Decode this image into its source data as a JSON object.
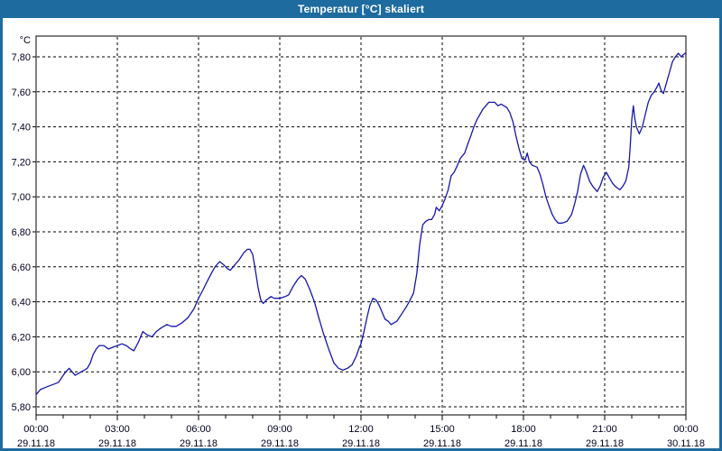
{
  "window": {
    "title": "Temperatur [°C] skaliert",
    "titlebar_color": "#1E6B9F",
    "border_color": "#1E6B9F",
    "background": "#FFFFFF"
  },
  "chart_data": {
    "type": "line",
    "title": "Temperatur [°C] skaliert",
    "ylabel": "°C",
    "xlabel": "",
    "legend": [],
    "grid": "dashed-black",
    "plot_background": "#FFFFFF",
    "line_color": "#1616AC",
    "text_color": "#00001E",
    "ylim": [
      5.75,
      7.92
    ],
    "xlim_hours": [
      0,
      24
    ],
    "y_tick_values": [
      5.8,
      6.0,
      6.2,
      6.4,
      6.6,
      6.8,
      7.0,
      7.2,
      7.4,
      7.6,
      7.8
    ],
    "y_tick_labels": [
      "5,80",
      "6,00",
      "6,20",
      "6,40",
      "6,60",
      "6,80",
      "7,00",
      "7,20",
      "7,40",
      "7,60",
      "7,80"
    ],
    "x_ticks": [
      {
        "hour": 0,
        "time": "00:00",
        "date": "29.11.18"
      },
      {
        "hour": 3,
        "time": "03:00",
        "date": "29.11.18"
      },
      {
        "hour": 6,
        "time": "06:00",
        "date": "29.11.18"
      },
      {
        "hour": 9,
        "time": "09:00",
        "date": "29.11.18"
      },
      {
        "hour": 12,
        "time": "12:00",
        "date": "29.11.18"
      },
      {
        "hour": 15,
        "time": "15:00",
        "date": "29.11.18"
      },
      {
        "hour": 18,
        "time": "18:00",
        "date": "29.11.18"
      },
      {
        "hour": 21,
        "time": "21:00",
        "date": "29.11.18"
      },
      {
        "hour": 24,
        "time": "00:00",
        "date": "30.11.18"
      }
    ],
    "minor_tick_every_hours": 1,
    "series_name": "Temperatur",
    "points": [
      [
        0.0,
        5.87
      ],
      [
        0.17,
        5.9
      ],
      [
        0.33,
        5.91
      ],
      [
        0.5,
        5.92
      ],
      [
        0.67,
        5.93
      ],
      [
        0.83,
        5.94
      ],
      [
        1.0,
        5.98
      ],
      [
        1.1,
        6.0
      ],
      [
        1.22,
        6.02
      ],
      [
        1.33,
        6.0
      ],
      [
        1.44,
        5.98
      ],
      [
        1.56,
        5.99
      ],
      [
        1.67,
        6.0
      ],
      [
        1.78,
        6.01
      ],
      [
        1.89,
        6.02
      ],
      [
        2.0,
        6.05
      ],
      [
        2.11,
        6.1
      ],
      [
        2.22,
        6.13
      ],
      [
        2.33,
        6.15
      ],
      [
        2.5,
        6.15
      ],
      [
        2.67,
        6.13
      ],
      [
        2.83,
        6.14
      ],
      [
        3.0,
        6.15
      ],
      [
        3.17,
        6.16
      ],
      [
        3.33,
        6.15
      ],
      [
        3.5,
        6.13
      ],
      [
        3.61,
        6.12
      ],
      [
        3.78,
        6.17
      ],
      [
        3.94,
        6.23
      ],
      [
        4.11,
        6.21
      ],
      [
        4.28,
        6.2
      ],
      [
        4.44,
        6.23
      ],
      [
        4.61,
        6.25
      ],
      [
        4.83,
        6.27
      ],
      [
        5.0,
        6.26
      ],
      [
        5.17,
        6.26
      ],
      [
        5.39,
        6.28
      ],
      [
        5.61,
        6.31
      ],
      [
        5.83,
        6.36
      ],
      [
        6.0,
        6.42
      ],
      [
        6.17,
        6.47
      ],
      [
        6.33,
        6.52
      ],
      [
        6.5,
        6.57
      ],
      [
        6.61,
        6.6
      ],
      [
        6.78,
        6.63
      ],
      [
        6.94,
        6.61
      ],
      [
        7.06,
        6.59
      ],
      [
        7.17,
        6.58
      ],
      [
        7.33,
        6.61
      ],
      [
        7.5,
        6.64
      ],
      [
        7.67,
        6.68
      ],
      [
        7.8,
        6.7
      ],
      [
        7.9,
        6.7
      ],
      [
        8.0,
        6.67
      ],
      [
        8.1,
        6.58
      ],
      [
        8.2,
        6.48
      ],
      [
        8.3,
        6.41
      ],
      [
        8.39,
        6.39
      ],
      [
        8.5,
        6.41
      ],
      [
        8.67,
        6.43
      ],
      [
        8.8,
        6.42
      ],
      [
        9.0,
        6.42
      ],
      [
        9.2,
        6.43
      ],
      [
        9.33,
        6.44
      ],
      [
        9.5,
        6.49
      ],
      [
        9.67,
        6.53
      ],
      [
        9.8,
        6.55
      ],
      [
        9.94,
        6.53
      ],
      [
        10.11,
        6.47
      ],
      [
        10.28,
        6.4
      ],
      [
        10.44,
        6.31
      ],
      [
        10.61,
        6.22
      ],
      [
        10.83,
        6.12
      ],
      [
        11.0,
        6.05
      ],
      [
        11.17,
        6.02
      ],
      [
        11.33,
        6.01
      ],
      [
        11.5,
        6.02
      ],
      [
        11.67,
        6.04
      ],
      [
        11.83,
        6.09
      ],
      [
        11.94,
        6.14
      ],
      [
        12.0,
        6.16
      ],
      [
        12.11,
        6.23
      ],
      [
        12.22,
        6.31
      ],
      [
        12.33,
        6.38
      ],
      [
        12.44,
        6.42
      ],
      [
        12.56,
        6.41
      ],
      [
        12.67,
        6.38
      ],
      [
        12.78,
        6.34
      ],
      [
        12.89,
        6.3
      ],
      [
        13.0,
        6.29
      ],
      [
        13.11,
        6.27
      ],
      [
        13.22,
        6.28
      ],
      [
        13.33,
        6.29
      ],
      [
        13.5,
        6.33
      ],
      [
        13.67,
        6.37
      ],
      [
        13.78,
        6.4
      ],
      [
        13.94,
        6.45
      ],
      [
        14.06,
        6.56
      ],
      [
        14.17,
        6.73
      ],
      [
        14.28,
        6.84
      ],
      [
        14.39,
        6.86
      ],
      [
        14.5,
        6.87
      ],
      [
        14.61,
        6.87
      ],
      [
        14.72,
        6.9
      ],
      [
        14.78,
        6.94
      ],
      [
        14.89,
        6.92
      ],
      [
        15.0,
        6.95
      ],
      [
        15.11,
        6.99
      ],
      [
        15.22,
        7.04
      ],
      [
        15.33,
        7.12
      ],
      [
        15.44,
        7.14
      ],
      [
        15.56,
        7.18
      ],
      [
        15.67,
        7.22
      ],
      [
        15.83,
        7.25
      ],
      [
        15.94,
        7.3
      ],
      [
        16.06,
        7.35
      ],
      [
        16.17,
        7.4
      ],
      [
        16.28,
        7.44
      ],
      [
        16.39,
        7.47
      ],
      [
        16.5,
        7.5
      ],
      [
        16.61,
        7.52
      ],
      [
        16.72,
        7.54
      ],
      [
        16.83,
        7.54
      ],
      [
        16.94,
        7.54
      ],
      [
        17.06,
        7.52
      ],
      [
        17.17,
        7.53
      ],
      [
        17.28,
        7.52
      ],
      [
        17.39,
        7.51
      ],
      [
        17.5,
        7.48
      ],
      [
        17.61,
        7.43
      ],
      [
        17.72,
        7.35
      ],
      [
        17.83,
        7.28
      ],
      [
        17.94,
        7.22
      ],
      [
        18.06,
        7.21
      ],
      [
        18.14,
        7.25
      ],
      [
        18.22,
        7.2
      ],
      [
        18.33,
        7.18
      ],
      [
        18.5,
        7.17
      ],
      [
        18.61,
        7.13
      ],
      [
        18.72,
        7.07
      ],
      [
        18.83,
        7.0
      ],
      [
        18.94,
        6.95
      ],
      [
        19.06,
        6.9
      ],
      [
        19.17,
        6.87
      ],
      [
        19.28,
        6.85
      ],
      [
        19.44,
        6.85
      ],
      [
        19.61,
        6.86
      ],
      [
        19.78,
        6.9
      ],
      [
        19.89,
        6.96
      ],
      [
        20.0,
        7.03
      ],
      [
        20.11,
        7.13
      ],
      [
        20.22,
        7.18
      ],
      [
        20.33,
        7.14
      ],
      [
        20.44,
        7.09
      ],
      [
        20.56,
        7.06
      ],
      [
        20.67,
        7.04
      ],
      [
        20.72,
        7.03
      ],
      [
        20.83,
        7.06
      ],
      [
        20.94,
        7.11
      ],
      [
        21.06,
        7.14
      ],
      [
        21.17,
        7.11
      ],
      [
        21.28,
        7.08
      ],
      [
        21.39,
        7.06
      ],
      [
        21.56,
        7.04
      ],
      [
        21.67,
        7.06
      ],
      [
        21.78,
        7.09
      ],
      [
        21.89,
        7.17
      ],
      [
        21.94,
        7.28
      ],
      [
        22.0,
        7.44
      ],
      [
        22.06,
        7.52
      ],
      [
        22.11,
        7.45
      ],
      [
        22.17,
        7.4
      ],
      [
        22.28,
        7.36
      ],
      [
        22.39,
        7.4
      ],
      [
        22.5,
        7.47
      ],
      [
        22.61,
        7.54
      ],
      [
        22.72,
        7.58
      ],
      [
        22.83,
        7.6
      ],
      [
        22.94,
        7.63
      ],
      [
        23.0,
        7.65
      ],
      [
        23.08,
        7.61
      ],
      [
        23.17,
        7.59
      ],
      [
        23.28,
        7.65
      ],
      [
        23.39,
        7.71
      ],
      [
        23.5,
        7.77
      ],
      [
        23.61,
        7.8
      ],
      [
        23.72,
        7.82
      ],
      [
        23.83,
        7.8
      ],
      [
        23.89,
        7.81
      ],
      [
        23.97,
        7.82
      ]
    ]
  }
}
